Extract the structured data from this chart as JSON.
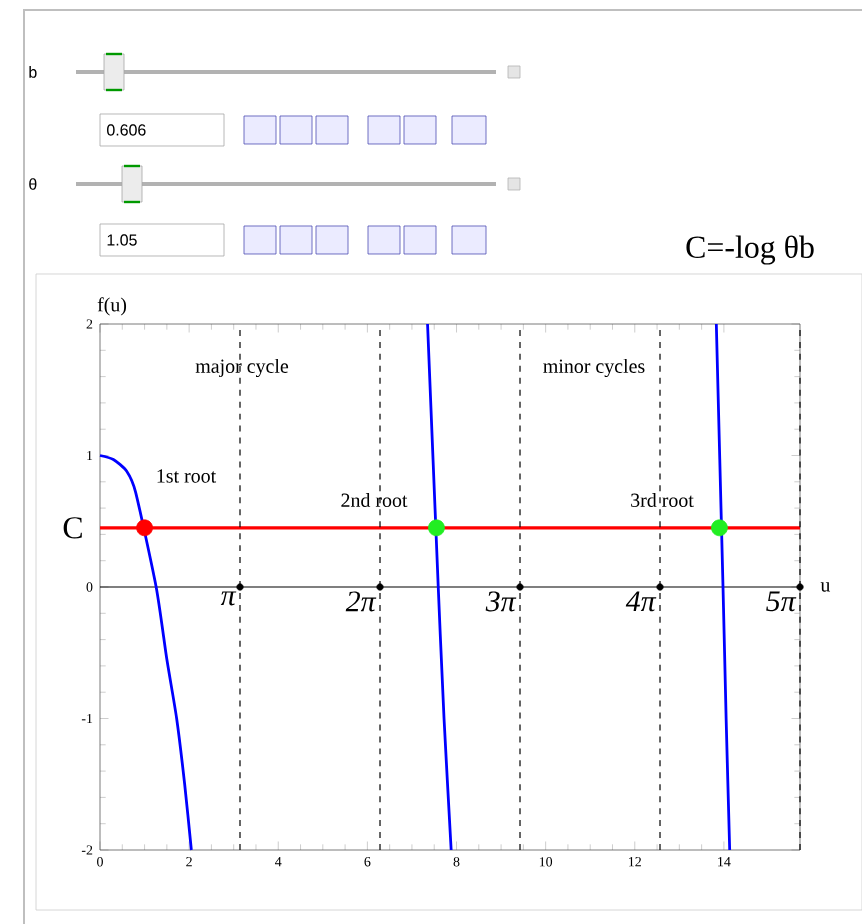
{
  "chart_data": {
    "type": "line",
    "xlabel": "u",
    "ylabel": "f(u)",
    "xlim": [
      0,
      15.708
    ],
    "ylim": [
      -2,
      2
    ],
    "xticks": [
      0,
      2,
      4,
      6,
      8,
      10,
      12,
      14
    ],
    "yticks": [
      -2,
      -1,
      0,
      1,
      2
    ],
    "series": [
      {
        "color": "#0000ff",
        "x": [
          0,
          0.3,
          0.6,
          0.8,
          1.26,
          1.5,
          1.72,
          1.9,
          2.05
        ],
        "values": [
          1,
          0.97,
          0.88,
          0.72,
          0,
          -0.55,
          -1,
          -1.5,
          -2
        ]
      },
      {
        "color": "#0000ff",
        "x": [
          7.35,
          7.59,
          7.72,
          7.88
        ],
        "values": [
          2,
          0,
          -1,
          -2
        ]
      },
      {
        "color": "#0000ff",
        "x": [
          13.83,
          13.98,
          14.05,
          14.13
        ],
        "values": [
          2,
          0,
          -1,
          -2
        ]
      },
      {
        "type": "scatter",
        "marker": "circle",
        "colors": [
          "#ff0000",
          "#22ee22",
          "#22ee22"
        ],
        "x": [
          1.0,
          7.55,
          13.9
        ],
        "values": [
          0.45,
          0.45,
          0.45
        ]
      },
      {
        "type": "scatter",
        "marker": "circle",
        "color": "#000000",
        "x": [
          3.1416,
          6.2832,
          9.4248,
          12.5664,
          15.708
        ],
        "values": [
          0,
          0,
          0,
          0,
          0
        ]
      }
    ],
    "ref_lines": [
      {
        "axis": "y",
        "value": 0,
        "color": "#000000",
        "line_style": "solid"
      },
      {
        "axis": "y",
        "value": 0.45,
        "label": "C",
        "color": "#ff0000",
        "line_style": "solid"
      },
      {
        "axis": "x",
        "value": 3.1416,
        "label": "π",
        "color": "#000000",
        "line_style": "dashed"
      },
      {
        "axis": "x",
        "value": 6.2832,
        "label": "2π",
        "color": "#000000",
        "line_style": "dashed"
      },
      {
        "axis": "x",
        "value": 9.4248,
        "label": "3π",
        "color": "#000000",
        "line_style": "dashed"
      },
      {
        "axis": "x",
        "value": 12.5664,
        "label": "4π",
        "color": "#000000",
        "line_style": "dashed"
      },
      {
        "axis": "x",
        "value": 15.708,
        "label": "5π",
        "color": "#000000",
        "line_style": "dashed"
      }
    ],
    "annotations": [
      "b",
      "0.606",
      "θ",
      "1.05",
      "C=-log θb",
      "major cycle",
      "minor cycles",
      "1st root",
      "2nd root",
      "3rd root"
    ],
    "grid": false
  }
}
